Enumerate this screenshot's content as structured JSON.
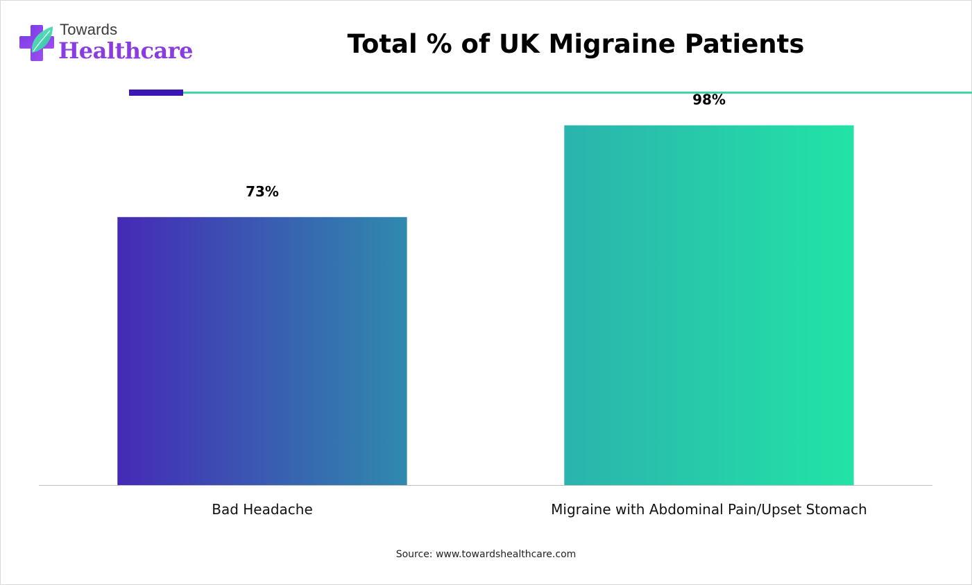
{
  "brand": {
    "line1": "Towards",
    "line2": "Healthcare",
    "icon": "medical-cross-leaf-icon",
    "color_primary": "#8a3ce0",
    "color_secondary": "#3ed6a6"
  },
  "chart_data": {
    "type": "bar",
    "title": "Total % of UK Migraine Patients",
    "xlabel": "",
    "ylabel": "",
    "categories": [
      "Bad Headache",
      "Migraine with Abdominal Pain/Upset Stomach"
    ],
    "values": [
      73,
      98
    ],
    "value_labels": [
      "73%",
      "98%"
    ],
    "ylim": [
      0,
      100
    ],
    "grid": false,
    "legend": "none",
    "bar_gradients": [
      [
        "#452ab6",
        "#2f8aad"
      ],
      [
        "#2bb3ad",
        "#22e3a6"
      ]
    ]
  },
  "source": "Source: www.towardshealthcare.com"
}
